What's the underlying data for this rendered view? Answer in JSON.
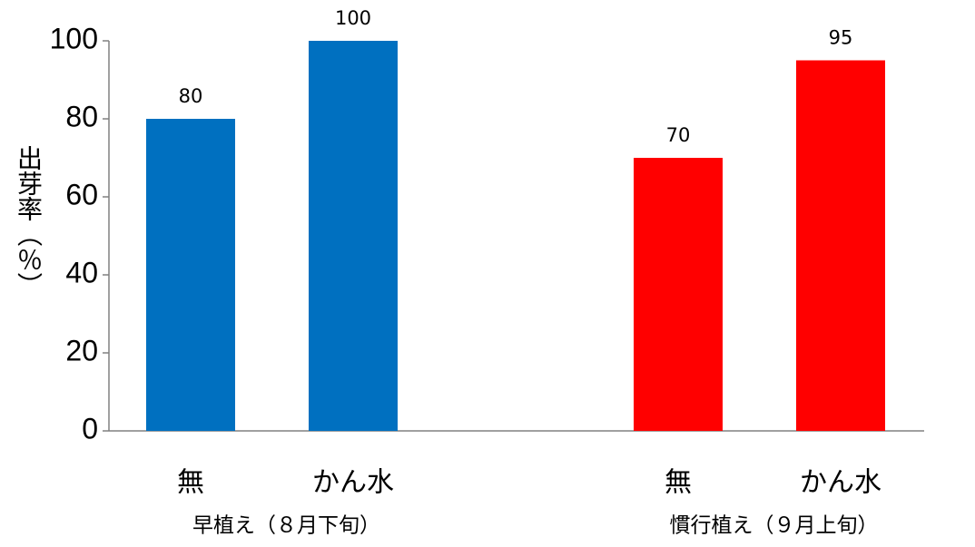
{
  "chart_data": {
    "type": "bar",
    "y_label": "出芽率（％）",
    "ylim": [
      0,
      100
    ],
    "yticks": [
      0,
      20,
      40,
      60,
      80,
      100
    ],
    "groups": [
      {
        "name": "早植え（８月下旬）",
        "color": "#0070c0",
        "categories": [
          "無",
          "かん水"
        ],
        "values": [
          80,
          100
        ]
      },
      {
        "name": "慣行植え（９月上旬）",
        "color": "#ff0000",
        "categories": [
          "無",
          "かん水"
        ],
        "values": [
          70,
          95
        ]
      }
    ]
  }
}
